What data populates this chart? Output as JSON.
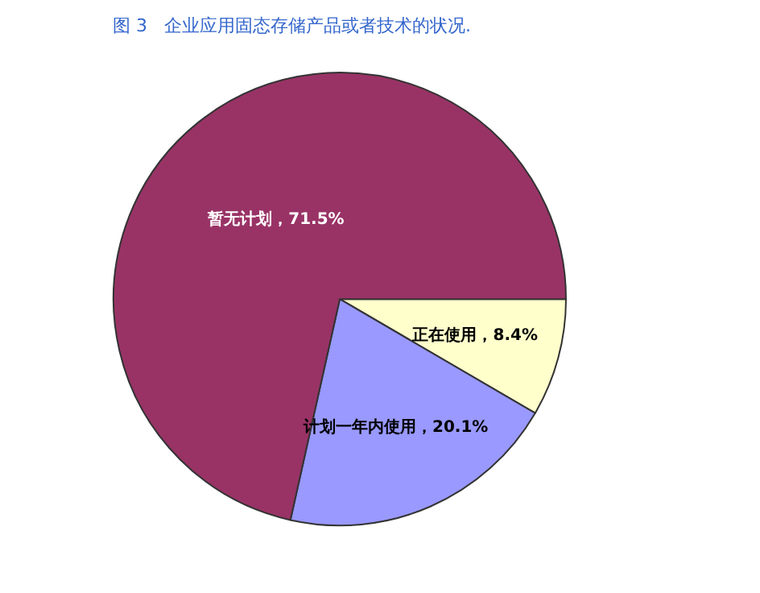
{
  "chart_data": {
    "type": "pie",
    "title": "图 3   企业应用固态存储产品或者技术的状况.",
    "categories": [
      "正在使用",
      "计划一年内使用",
      "暂无计划"
    ],
    "values": [
      8.4,
      20.1,
      71.5
    ],
    "colors": [
      "#ffffcc",
      "#9999ff",
      "#993366"
    ],
    "value_labels": [
      "8.4%",
      "20.1%",
      "71.5%"
    ],
    "legend": false
  }
}
